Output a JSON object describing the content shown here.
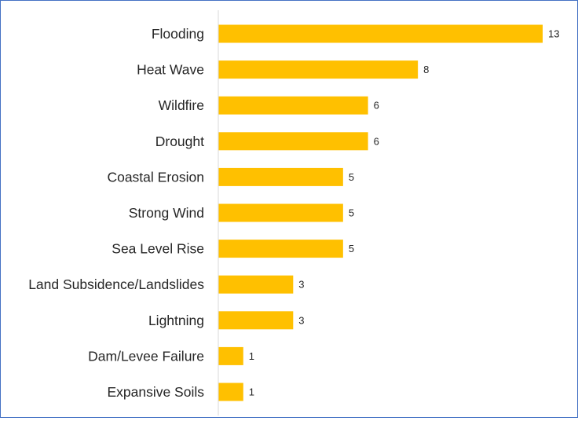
{
  "chart_data": {
    "type": "bar",
    "orientation": "horizontal",
    "categories": [
      "Flooding",
      "Heat Wave",
      "Wildfire",
      "Drought",
      "Coastal Erosion",
      "Strong Wind",
      "Sea Level Rise",
      "Land Subsidence/Landslides",
      "Lightning",
      "Dam/Levee Failure",
      "Expansive Soils"
    ],
    "values": [
      13,
      8,
      6,
      6,
      5,
      5,
      5,
      3,
      3,
      1,
      1
    ],
    "data_labels": [
      "13",
      "8",
      "6",
      "6",
      "5",
      "5",
      "5",
      "3",
      "3",
      "1",
      "1"
    ],
    "title": "",
    "xlabel": "",
    "ylabel": "",
    "xlim": [
      0,
      13
    ],
    "grid": false,
    "legend": "none",
    "colors": {
      "bar": "#ffc000",
      "axis": "#d9d9d9",
      "text": "#262626",
      "frame": "#4472c4"
    }
  }
}
